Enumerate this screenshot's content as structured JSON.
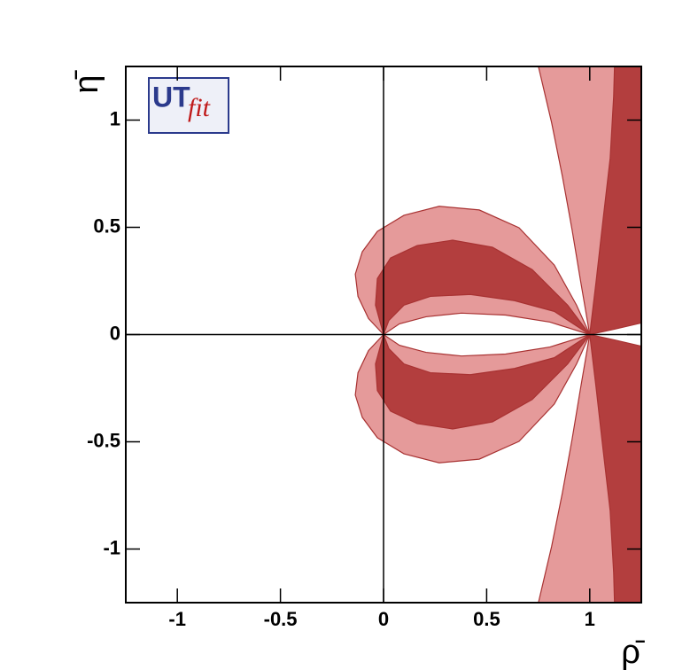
{
  "chart_data": {
    "type": "contour",
    "x_label": "ρ̄",
    "y_label": "η̄",
    "logo": {
      "first": "UT",
      "second": "fit"
    },
    "xlim": [
      -1.25,
      1.25
    ],
    "ylim": [
      -1.25,
      1.25
    ],
    "xticks": [
      -1,
      -0.5,
      0,
      0.5,
      1
    ],
    "yticks": [
      -1,
      -0.5,
      0,
      0.5,
      1
    ],
    "regions": [
      {
        "color": "#e59a9a",
        "x": [
          0,
          -0.073,
          -0.124,
          -0.137,
          -0.103,
          -0.03,
          0.099,
          0.27,
          0.464,
          0.657,
          0.828,
          0.936,
          1,
          0.807,
          0.592,
          0.378,
          0.206,
          0.077
        ],
        "y": [
          0,
          0.075,
          0.178,
          0.282,
          0.386,
          0.481,
          0.556,
          0.598,
          0.581,
          0.498,
          0.324,
          0.137,
          0,
          0.058,
          0.091,
          0.1,
          0.083,
          0.05
        ]
      },
      {
        "color": "#e59a9a",
        "x": [
          0,
          -0.073,
          -0.124,
          -0.137,
          -0.103,
          -0.03,
          0.099,
          0.27,
          0.464,
          0.657,
          0.828,
          0.936,
          1,
          0.807,
          0.592,
          0.378,
          0.206,
          0.077
        ],
        "y": [
          0,
          -0.075,
          -0.178,
          -0.282,
          -0.386,
          -0.481,
          -0.556,
          -0.598,
          -0.581,
          -0.498,
          -0.324,
          -0.137,
          0,
          -0.058,
          -0.091,
          -0.1,
          -0.083,
          -0.05
        ]
      },
      {
        "color": "#e59a9a",
        "x": [
          1,
          0.957,
          0.914,
          0.867,
          0.815,
          0.751,
          1.25,
          1.25,
          1.107
        ],
        "y": [
          0,
          0.241,
          0.49,
          0.739,
          0.988,
          1.25,
          1.25,
          0.158,
          0.066
        ]
      },
      {
        "color": "#e59a9a",
        "x": [
          1,
          0.957,
          0.914,
          0.867,
          0.815,
          0.751,
          1.25,
          1.25,
          1.107
        ],
        "y": [
          0,
          -0.241,
          -0.49,
          -0.739,
          -0.988,
          -1.25,
          -1.25,
          -0.158,
          -0.066
        ]
      },
      {
        "color": "#b33e3e",
        "x": [
          0,
          -0.039,
          -0.03,
          0.034,
          0.163,
          0.335,
          0.528,
          0.721,
          0.893,
          1,
          0.828,
          0.635,
          0.421,
          0.227,
          0.099,
          0.026
        ],
        "y": [
          0,
          0.137,
          0.261,
          0.357,
          0.415,
          0.44,
          0.407,
          0.303,
          0.137,
          0,
          0.108,
          0.158,
          0.187,
          0.178,
          0.137,
          0.066
        ]
      },
      {
        "color": "#b33e3e",
        "x": [
          0,
          -0.039,
          -0.03,
          0.034,
          0.163,
          0.335,
          0.528,
          0.721,
          0.893,
          1,
          0.828,
          0.635,
          0.421,
          0.227,
          0.099,
          0.026
        ],
        "y": [
          0,
          -0.137,
          -0.261,
          -0.357,
          -0.415,
          -0.44,
          -0.407,
          -0.303,
          -0.137,
          0,
          -0.108,
          -0.158,
          -0.187,
          -0.178,
          -0.137,
          -0.066
        ]
      },
      {
        "color": "#b33e3e",
        "x": [
          1,
          1.03,
          1.064,
          1.099,
          1.116,
          1.12,
          1.25,
          1.25,
          1.12
        ],
        "y": [
          0,
          0.241,
          0.531,
          0.822,
          1.112,
          1.25,
          1.25,
          0.054,
          0.025
        ]
      },
      {
        "color": "#b33e3e",
        "x": [
          1,
          1.03,
          1.064,
          1.099,
          1.116,
          1.12,
          1.25,
          1.25,
          1.12
        ],
        "y": [
          0,
          -0.241,
          -0.531,
          -0.822,
          -1.112,
          -1.25,
          -1.25,
          -0.054,
          -0.025
        ]
      }
    ]
  }
}
